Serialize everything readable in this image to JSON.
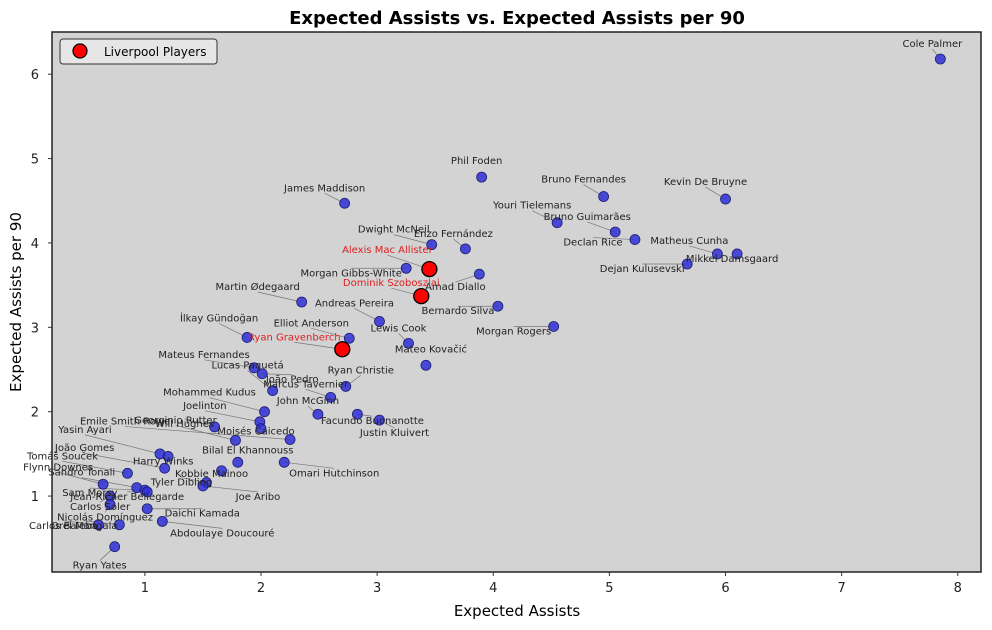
{
  "chart_data": {
    "type": "scatter",
    "title": "Expected Assists vs. Expected Assists per 90",
    "xlabel": "Expected Assists",
    "ylabel": "Expected Assists per 90",
    "xlim": [
      0.2,
      8.2
    ],
    "ylim": [
      0.1,
      6.5
    ],
    "xticks": [
      1,
      2,
      3,
      4,
      5,
      6,
      7,
      8
    ],
    "yticks": [
      1,
      2,
      3,
      4,
      5,
      6
    ],
    "grid": false,
    "legend": {
      "placement": "top-left",
      "entries": [
        "Liverpool Players"
      ]
    },
    "colors": {
      "players": "#2f2fd6",
      "liverpool": "#ff0000",
      "background": "#d3d3d3",
      "highlight_text": "#e02020"
    },
    "series": [
      {
        "name": "",
        "points": [
          {
            "label": "Cole Palmer",
            "x": 7.85,
            "y": 6.18
          },
          {
            "label": "Phil Foden",
            "x": 3.9,
            "y": 4.78
          },
          {
            "label": "Bruno Fernandes",
            "x": 4.95,
            "y": 4.55
          },
          {
            "label": "Kevin De Bruyne",
            "x": 6.0,
            "y": 4.52
          },
          {
            "label": "James Maddison",
            "x": 2.72,
            "y": 4.47
          },
          {
            "label": "Youri Tielemans",
            "x": 4.55,
            "y": 4.24
          },
          {
            "label": "Bruno Guimarães",
            "x": 5.05,
            "y": 4.13
          },
          {
            "label": "Declan Rice",
            "x": 5.22,
            "y": 4.04
          },
          {
            "label": "Dwight McNeil",
            "x": 3.47,
            "y": 3.98
          },
          {
            "label": "Enzo Fernández",
            "x": 3.76,
            "y": 3.93
          },
          {
            "label": "Matheus Cunha",
            "x": 5.93,
            "y": 3.87
          },
          {
            "label": "Mikkel Damsgaard",
            "x": 6.1,
            "y": 3.87
          },
          {
            "label": "Dejan Kulusevski",
            "x": 5.67,
            "y": 3.75
          },
          {
            "label": "Morgan Gibbs-White",
            "x": 3.25,
            "y": 3.7
          },
          {
            "label": "Amad Diallo",
            "x": 3.88,
            "y": 3.63
          },
          {
            "label": "Martin Ødegaard",
            "x": 2.35,
            "y": 3.3
          },
          {
            "label": "Bernardo Silva",
            "x": 4.04,
            "y": 3.25
          },
          {
            "label": "Andreas Pereira",
            "x": 3.02,
            "y": 3.07
          },
          {
            "label": "Morgan Rogers",
            "x": 4.52,
            "y": 3.01
          },
          {
            "label": "İlkay Gündoğan",
            "x": 1.88,
            "y": 2.88
          },
          {
            "label": "Elliot Anderson",
            "x": 2.76,
            "y": 2.87
          },
          {
            "label": "Lewis Cook",
            "x": 3.27,
            "y": 2.81
          },
          {
            "label": "Mateo Kovačić",
            "x": 3.42,
            "y": 2.55
          },
          {
            "label": "Mateus Fernandes",
            "x": 1.94,
            "y": 2.52
          },
          {
            "label": "João Pedro",
            "x": 2.01,
            "y": 2.45
          },
          {
            "label": "Ryan Christie",
            "x": 2.73,
            "y": 2.3
          },
          {
            "label": "Lucas Paquetá",
            "x": 2.1,
            "y": 2.25
          },
          {
            "label": "Marcus Tavernier",
            "x": 2.6,
            "y": 2.17
          },
          {
            "label": "Mohammed Kudus",
            "x": 2.03,
            "y": 2.0
          },
          {
            "label": "John McGinn",
            "x": 2.49,
            "y": 1.97
          },
          {
            "label": "Facundo Buonanotte",
            "x": 2.83,
            "y": 1.97
          },
          {
            "label": "Joelinton",
            "x": 1.99,
            "y": 1.88
          },
          {
            "label": "Will Hughes",
            "x": 1.6,
            "y": 1.82
          },
          {
            "label": "Moisés Caicedo",
            "x": 2.0,
            "y": 1.8
          },
          {
            "label": "Justin Kluivert",
            "x": 3.02,
            "y": 1.9
          },
          {
            "label": "Emile Smith Rowe",
            "x": 2.25,
            "y": 1.67
          },
          {
            "label": "Georginio Rutter",
            "x": 1.78,
            "y": 1.66
          },
          {
            "label": "Yasin Ayari",
            "x": 1.13,
            "y": 1.5
          },
          {
            "label": "Harry Winks",
            "x": 1.2,
            "y": 1.47
          },
          {
            "label": "Bilal El Khannouss",
            "x": 1.8,
            "y": 1.4
          },
          {
            "label": "Omari Hutchinson",
            "x": 2.2,
            "y": 1.4
          },
          {
            "label": "João Gomes",
            "x": 1.17,
            "y": 1.33
          },
          {
            "label": "Kobbie Mainoo",
            "x": 1.66,
            "y": 1.3
          },
          {
            "label": "Tomáš Souček",
            "x": 0.85,
            "y": 1.27
          },
          {
            "label": "Flynn Downes",
            "x": 0.64,
            "y": 1.14
          },
          {
            "label": "Tyler Dibling",
            "x": 1.53,
            "y": 1.16
          },
          {
            "label": "Joe Aribo",
            "x": 1.5,
            "y": 1.12
          },
          {
            "label": "Sandro Tonali",
            "x": 0.93,
            "y": 1.1
          },
          {
            "label": "Sam Morsy",
            "x": 1.0,
            "y": 1.07
          },
          {
            "label": "Jean-Ricner Bellegarde",
            "x": 1.02,
            "y": 1.05
          },
          {
            "label": "Carlos Soler",
            "x": 0.7,
            "y": 1.0
          },
          {
            "label": "Nicolás Domínguez",
            "x": 0.7,
            "y": 0.9
          },
          {
            "label": "Daichi Kamada",
            "x": 1.02,
            "y": 0.85
          },
          {
            "label": "Abdoulaye Doucouré",
            "x": 1.15,
            "y": 0.7
          },
          {
            "label": "Orel Mangala",
            "x": 0.78,
            "y": 0.66
          },
          {
            "label": "Carlos Baleba",
            "x": 0.6,
            "y": 0.66
          },
          {
            "label": "Ryan Yates",
            "x": 0.74,
            "y": 0.4
          }
        ]
      },
      {
        "name": "Liverpool Players",
        "points": [
          {
            "label": "Alexis Mac Allister",
            "x": 3.45,
            "y": 3.69
          },
          {
            "label": "Dominik Szoboszlai",
            "x": 3.38,
            "y": 3.37
          },
          {
            "label": "Ryan Gravenberch",
            "x": 2.7,
            "y": 2.74
          }
        ]
      }
    ]
  }
}
